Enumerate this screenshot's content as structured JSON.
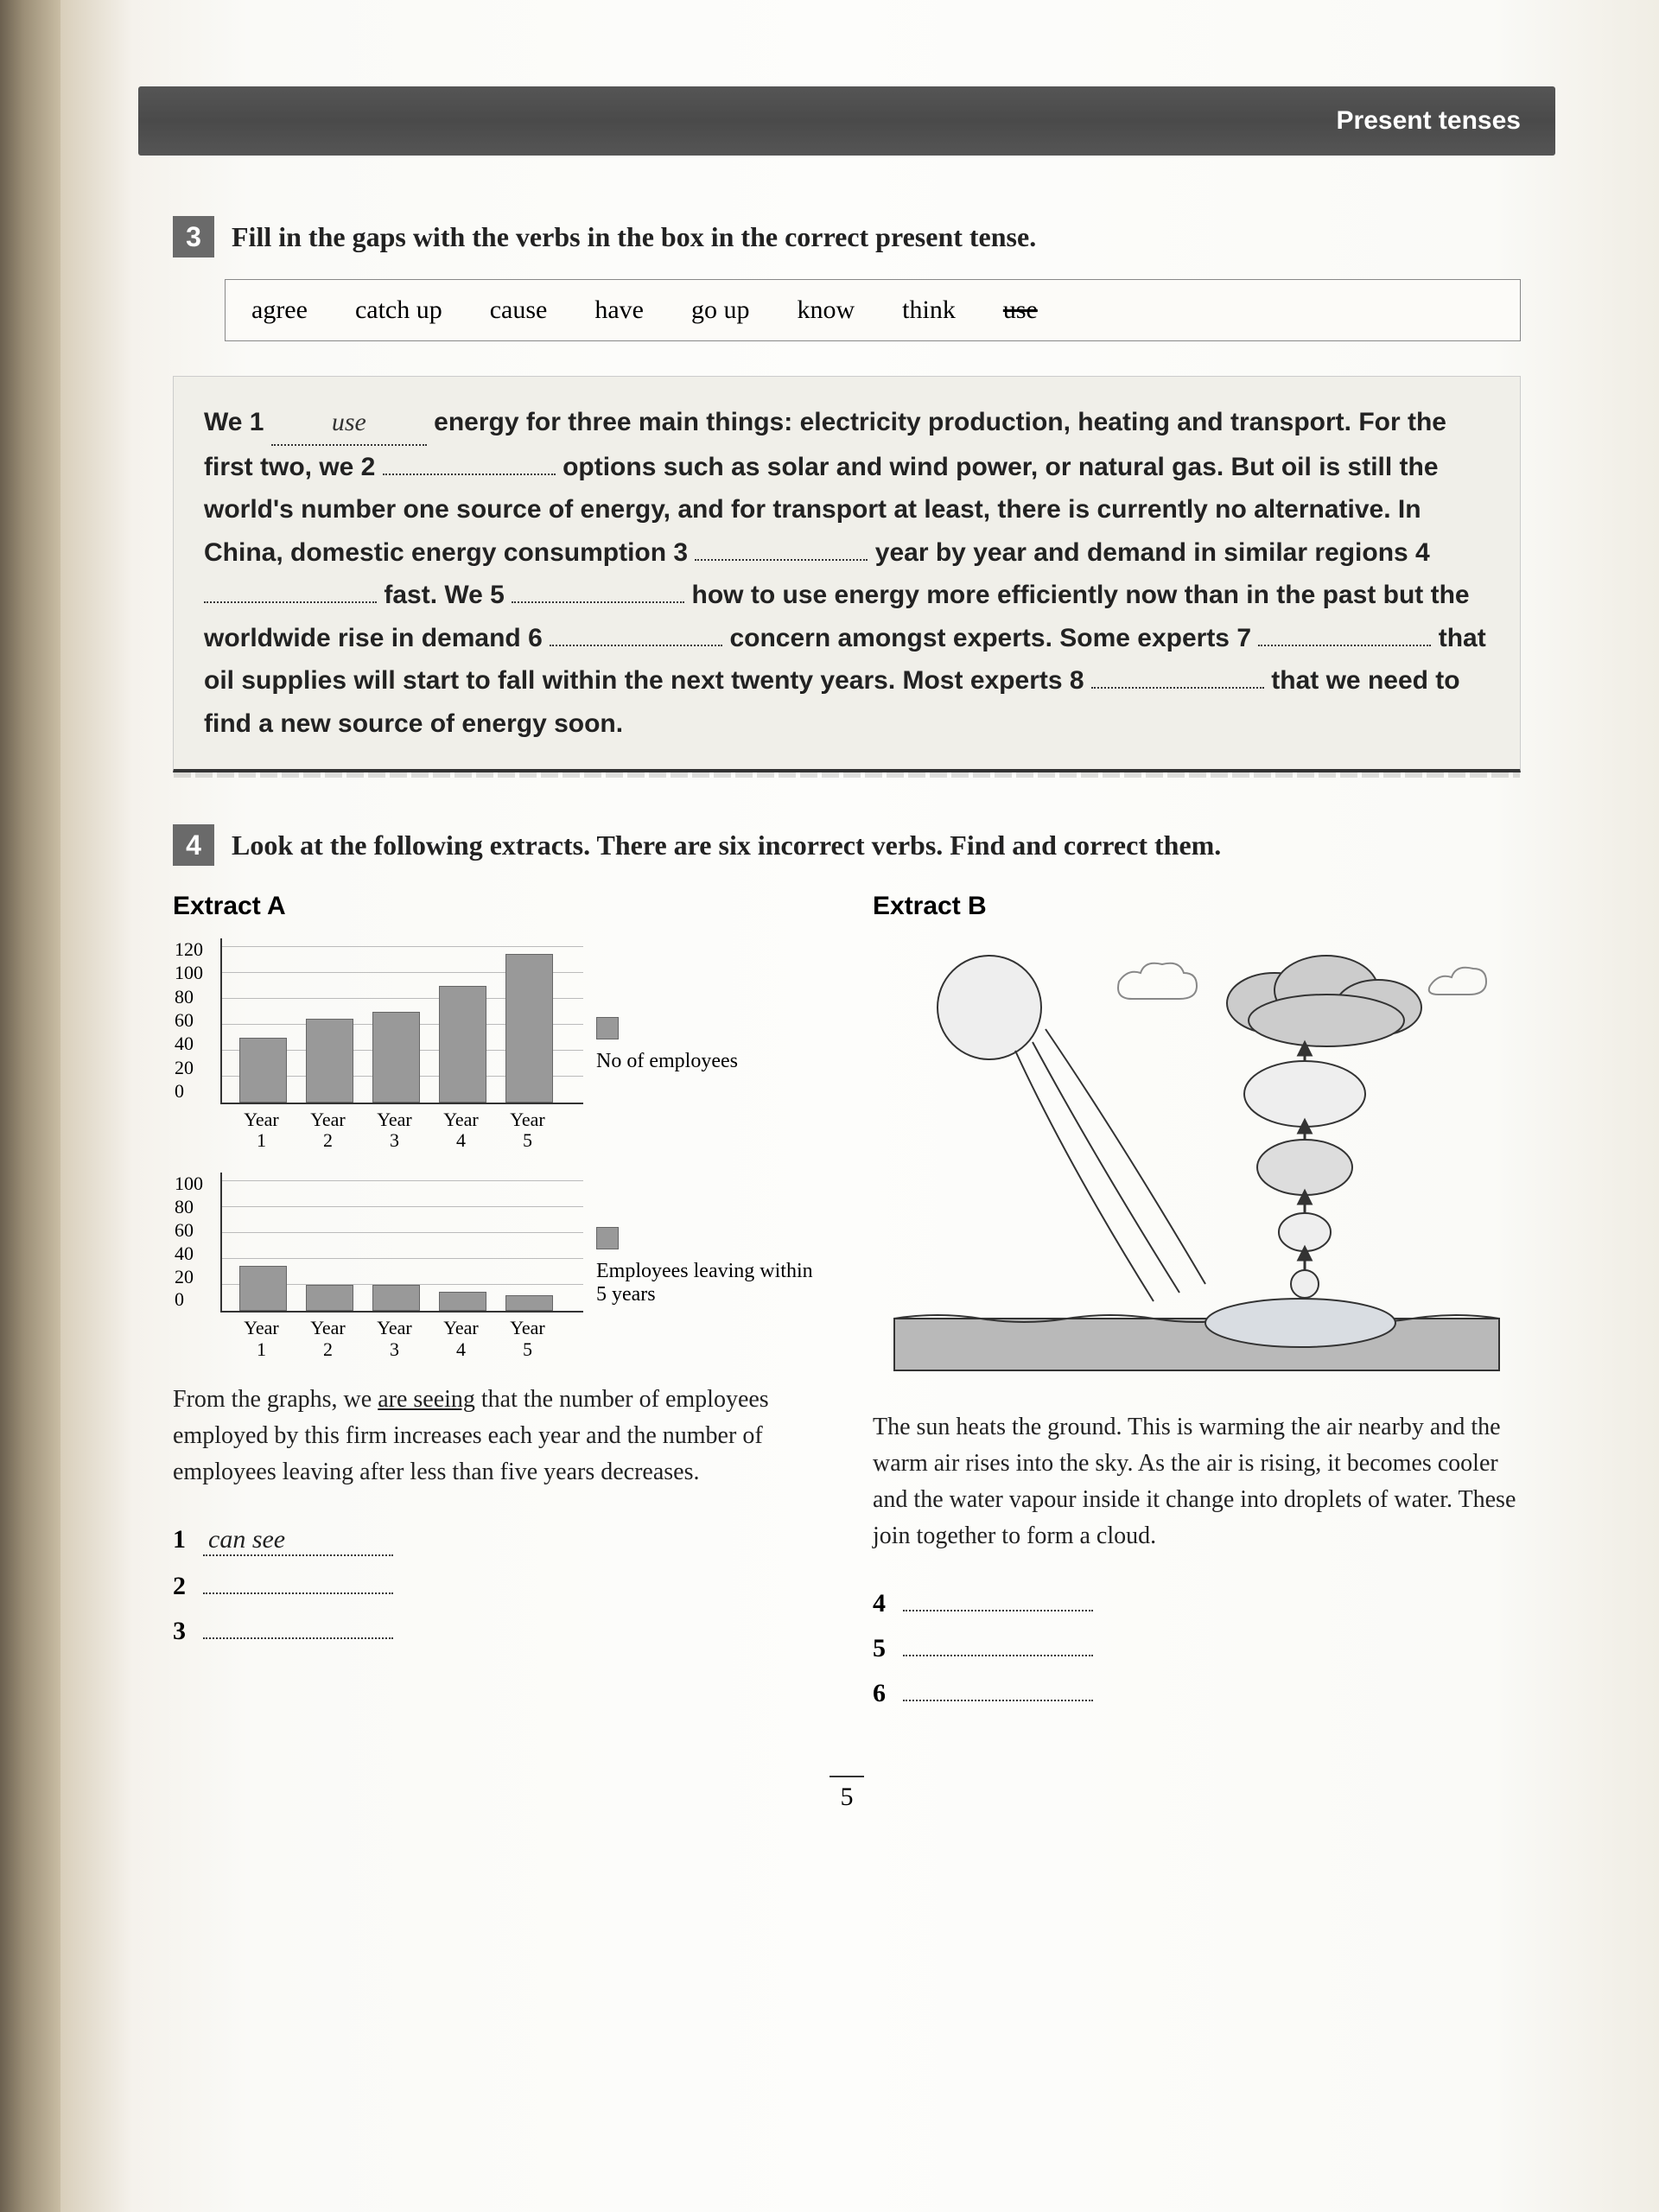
{
  "header": {
    "chapter_title": "Present tenses"
  },
  "ex3": {
    "number": "3",
    "instruction": "Fill in the gaps with the verbs in the box in the correct present tense.",
    "verbs": [
      "agree",
      "catch up",
      "cause",
      "have",
      "go up",
      "know",
      "think",
      "use"
    ],
    "verb_struck": "use",
    "passage": {
      "p1a": "We 1",
      "blank1": "use",
      "p1b": "energy for three main things: electricity production, heating and transport. For the first two, we 2",
      "p1c": "options such as solar and wind power, or natural gas. But oil is still the world's number one source of energy, and for transport at least, there is currently no alternative. In China, domestic energy consumption 3",
      "p1d": "year by year and demand in similar regions 4",
      "p1e": "fast. We 5",
      "p1f": "how to use energy more efficiently now than in the past but the worldwide rise in demand 6",
      "p1g": "concern amongst experts. Some experts 7",
      "p1h": "that oil supplies will start to fall within the next twenty years. Most experts 8",
      "p1i": "that we need to find a new source of energy soon."
    }
  },
  "ex4": {
    "number": "4",
    "instruction": "Look at the following extracts. There are six incorrect verbs. Find and correct them.",
    "extractA": {
      "title": "Extract A",
      "chart1": {
        "type": "bar",
        "legend": "No of employees",
        "categories": [
          "Year 1",
          "Year 2",
          "Year 3",
          "Year 4",
          "Year 5"
        ],
        "values": [
          50,
          65,
          70,
          90,
          115
        ],
        "ylim": [
          0,
          120
        ],
        "ytick_step": 20,
        "bar_color": "#999999",
        "grid_color": "#bbbbbb"
      },
      "chart2": {
        "type": "bar",
        "legend": "Employees leaving within 5 years",
        "categories": [
          "Year 1",
          "Year 2",
          "Year 3",
          "Year 4",
          "Year 5"
        ],
        "values": [
          35,
          20,
          20,
          15,
          12
        ],
        "ylim": [
          0,
          100
        ],
        "ytick_step": 20,
        "bar_color": "#999999",
        "grid_color": "#bbbbbb"
      },
      "handwriting_pre": "From the graphs, we ",
      "handwriting_ul": "are seeing",
      "handwriting_post": " that the number of employees employed by this firm increases each year and the number of employees leaving after less than five years decreases.",
      "answers": {
        "1": {
          "num": "1",
          "val": "can see"
        },
        "2": {
          "num": "2",
          "val": ""
        },
        "3": {
          "num": "3",
          "val": ""
        }
      }
    },
    "extractB": {
      "title": "Extract B",
      "diagram": {
        "type": "infographic",
        "elements": [
          "sun",
          "rays",
          "ground-water",
          "evaporation-arrows",
          "small-cloud",
          "large-cloud",
          "side-clouds"
        ],
        "colors": {
          "outline": "#333333",
          "fill_light": "#eeeeee",
          "fill_mid": "#cccccc",
          "water": "#d9dde2",
          "ground": "#b9b9b9"
        }
      },
      "handwriting": "The sun heats the ground. This is warming the air nearby and the warm air rises into the sky. As the air is rising, it becomes cooler and the water vapour inside it change into droplets of water. These join together to form a cloud.",
      "answers": {
        "4": {
          "num": "4",
          "val": ""
        },
        "5": {
          "num": "5",
          "val": ""
        },
        "6": {
          "num": "6",
          "val": ""
        }
      }
    }
  },
  "page_number": "5"
}
